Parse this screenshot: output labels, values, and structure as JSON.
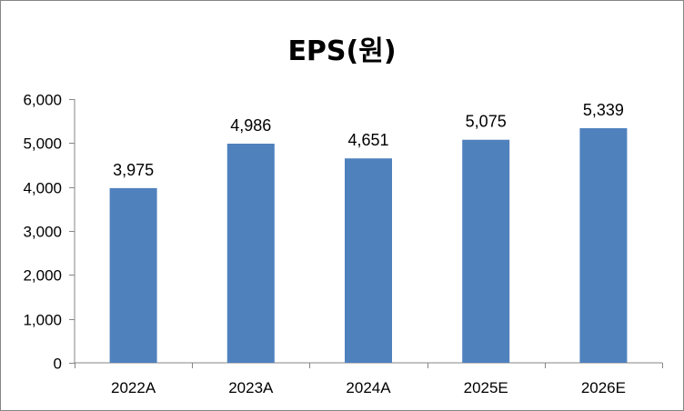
{
  "chart_data": {
    "type": "bar",
    "title": "EPS(원)",
    "categories": [
      "2022A",
      "2023A",
      "2024A",
      "2025E",
      "2026E"
    ],
    "values": [
      3975,
      4986,
      4651,
      5075,
      5339
    ],
    "value_labels": [
      "3,975",
      "4,986",
      "4,651",
      "5,075",
      "5,339"
    ],
    "ylim": [
      0,
      6000
    ],
    "yticks": [
      0,
      1000,
      2000,
      3000,
      4000,
      5000,
      6000
    ],
    "ytick_labels": [
      "0",
      "1,000",
      "2,000",
      "3,000",
      "4,000",
      "5,000",
      "6,000"
    ],
    "grid": false,
    "legend": "none",
    "bar_color": "#4F81BD",
    "axis_color": "#868686"
  }
}
